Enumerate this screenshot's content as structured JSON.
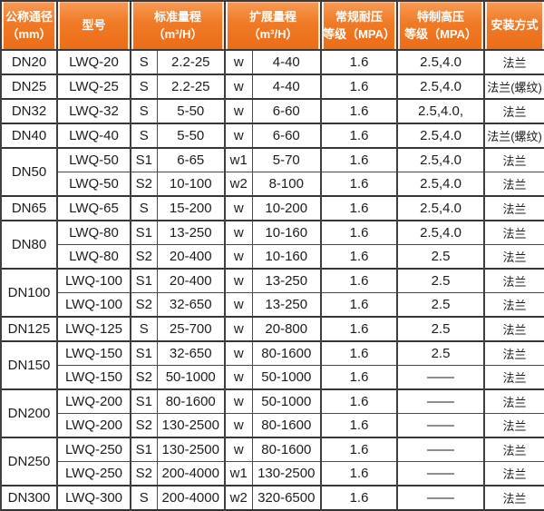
{
  "table": {
    "headers": [
      {
        "line1": "公称通径",
        "line2": "（mm）"
      },
      {
        "line1": "型号",
        "line2": ""
      },
      {
        "line1": "标准量程",
        "line2": "（m³/H）"
      },
      {
        "line1": "扩展量程",
        "line2": "（m³/H）"
      },
      {
        "line1": "常规耐压",
        "line2": "等级（MPA）"
      },
      {
        "line1": "特制高压",
        "line2": "等级（MPA）"
      },
      {
        "line1": "安装方式",
        "line2": ""
      }
    ],
    "rows": [
      {
        "dn": "DN20",
        "dn_span": 1,
        "model": "LWQ-20",
        "s_label": "S",
        "std_range": "2.2-25",
        "w_label": "w",
        "ext_range": "4-40",
        "pressure_regular": "1.6",
        "pressure_special": "2.5,4.0",
        "install": "法兰",
        "group_start": true
      },
      {
        "dn": "DN25",
        "dn_span": 1,
        "model": "LWQ-25",
        "s_label": "S",
        "std_range": "2.2-25",
        "w_label": "w",
        "ext_range": "4-40",
        "pressure_regular": "1.6",
        "pressure_special": "2.5,4.0",
        "install": "法兰(螺纹)",
        "group_start": true
      },
      {
        "dn": "DN32",
        "dn_span": 1,
        "model": "LWQ-32",
        "s_label": "S",
        "std_range": "5-50",
        "w_label": "w",
        "ext_range": "6-60",
        "pressure_regular": "1.6",
        "pressure_special": "2.5,4.0,",
        "install": "法兰",
        "group_start": true
      },
      {
        "dn": "DN40",
        "dn_span": 1,
        "model": "LWQ-40",
        "s_label": "S",
        "std_range": "5-50",
        "w_label": "w",
        "ext_range": "6-60",
        "pressure_regular": "1.6",
        "pressure_special": "2.5,4.0",
        "install": "法兰(螺纹)",
        "group_start": true
      },
      {
        "dn": "DN50",
        "dn_span": 2,
        "model": "LWQ-50",
        "s_label": "S1",
        "std_range": "6-65",
        "w_label": "w1",
        "ext_range": "5-70",
        "pressure_regular": "1.6",
        "pressure_special": "2.5,4.0",
        "install": "法兰",
        "group_start": true
      },
      {
        "dn": null,
        "dn_span": 0,
        "model": "LWQ-50",
        "s_label": "S2",
        "std_range": "10-100",
        "w_label": "w2",
        "ext_range": "8-100",
        "pressure_regular": "1.6",
        "pressure_special": "2.5,4.0",
        "install": "法兰",
        "group_start": false
      },
      {
        "dn": "DN65",
        "dn_span": 1,
        "model": "LWQ-65",
        "s_label": "S",
        "std_range": "15-200",
        "w_label": "w",
        "ext_range": "10-200",
        "pressure_regular": "1.6",
        "pressure_special": "2.5,4.0",
        "install": "法兰",
        "group_start": true
      },
      {
        "dn": "DN80",
        "dn_span": 2,
        "model": "LWQ-80",
        "s_label": "S1",
        "std_range": "13-250",
        "w_label": "w",
        "ext_range": "10-160",
        "pressure_regular": "1.6",
        "pressure_special": "2.5,4.0",
        "install": "法兰",
        "group_start": true
      },
      {
        "dn": null,
        "dn_span": 0,
        "model": "LWQ-80",
        "s_label": "S2",
        "std_range": "20-400",
        "w_label": "w",
        "ext_range": "10-160",
        "pressure_regular": "1.6",
        "pressure_special": "2.5",
        "install": "法兰",
        "group_start": false
      },
      {
        "dn": "DN100",
        "dn_span": 2,
        "model": "LWQ-100",
        "s_label": "S1",
        "std_range": "20-400",
        "w_label": "w",
        "ext_range": "13-250",
        "pressure_regular": "1.6",
        "pressure_special": "2.5",
        "install": "法兰",
        "group_start": true
      },
      {
        "dn": null,
        "dn_span": 0,
        "model": "LWQ-100",
        "s_label": "S2",
        "std_range": "32-650",
        "w_label": "w",
        "ext_range": "13-250",
        "pressure_regular": "1.6",
        "pressure_special": "2.5",
        "install": "法兰",
        "group_start": false
      },
      {
        "dn": "DN125",
        "dn_span": 1,
        "model": "LWQ-125",
        "s_label": "S",
        "std_range": "25-700",
        "w_label": "w",
        "ext_range": "20-800",
        "pressure_regular": "1.6",
        "pressure_special": "2.5",
        "install": "法兰",
        "group_start": true
      },
      {
        "dn": "DN150",
        "dn_span": 2,
        "model": "LWQ-150",
        "s_label": "S1",
        "std_range": "32-650",
        "w_label": "w",
        "ext_range": "80-1600",
        "pressure_regular": "1.6",
        "pressure_special": "2.5",
        "install": "法兰",
        "group_start": true
      },
      {
        "dn": null,
        "dn_span": 0,
        "model": "LWQ-150",
        "s_label": "S2",
        "std_range": "50-1000",
        "w_label": "w",
        "ext_range": "50-1000",
        "pressure_regular": "1.6",
        "pressure_special": "——",
        "install": "法兰",
        "group_start": false
      },
      {
        "dn": "DN200",
        "dn_span": 2,
        "model": "LWQ-200",
        "s_label": "S1",
        "std_range": "80-1600",
        "w_label": "w",
        "ext_range": "50-1000",
        "pressure_regular": "1.6",
        "pressure_special": "——",
        "install": "法兰",
        "group_start": true
      },
      {
        "dn": null,
        "dn_span": 0,
        "model": "LWQ-200",
        "s_label": "S2",
        "std_range": "130-2500",
        "w_label": "w",
        "ext_range": "80-1600",
        "pressure_regular": "1.6",
        "pressure_special": "——",
        "install": "法兰",
        "group_start": false
      },
      {
        "dn": "DN250",
        "dn_span": 2,
        "model": "LWQ-250",
        "s_label": "S1",
        "std_range": "130-2500",
        "w_label": "w",
        "ext_range": "80-1600",
        "pressure_regular": "1.6",
        "pressure_special": "——",
        "install": "法兰",
        "group_start": true
      },
      {
        "dn": null,
        "dn_span": 0,
        "model": "LWQ-250",
        "s_label": "S2",
        "std_range": "200-4000",
        "w_label": "w1",
        "ext_range": "130-2500",
        "pressure_regular": "1.6",
        "pressure_special": "——",
        "install": "法兰",
        "group_start": false
      },
      {
        "dn": "DN300",
        "dn_span": 1,
        "model": "LWQ-300",
        "s_label": "S",
        "std_range": "200-4000",
        "w_label": "w2",
        "ext_range": "320-6500",
        "pressure_regular": "1.6",
        "pressure_special": "——",
        "install": "法兰",
        "group_start": true
      }
    ]
  },
  "colors": {
    "header_orange": "#ee7123",
    "header_orange_light": "#f89a55",
    "header_text": "#ffffff",
    "border_dark": "#3b3b3b",
    "body_text": "#1c1c1c",
    "body_background": "#ffffff"
  }
}
